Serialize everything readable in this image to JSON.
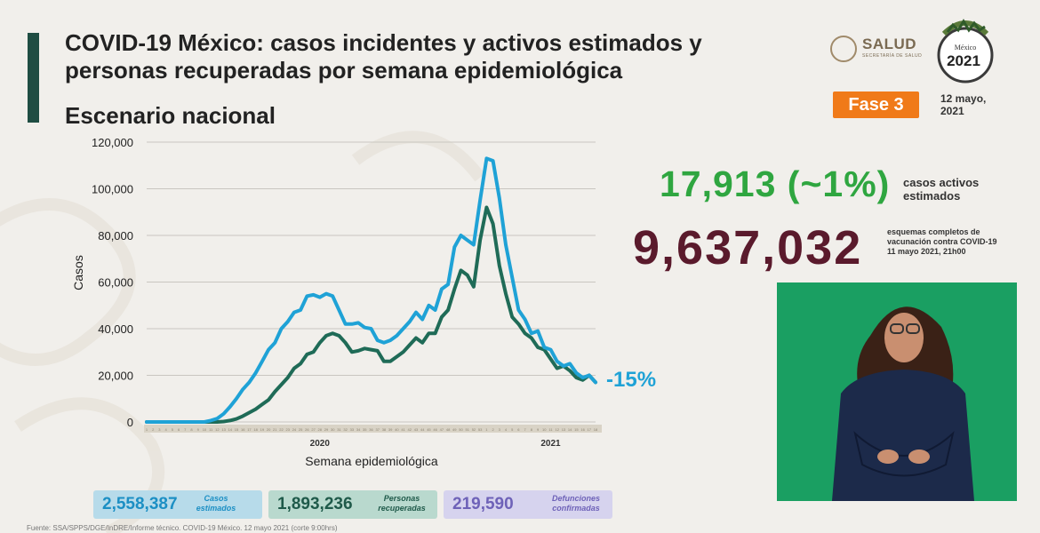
{
  "header": {
    "title": "COVID-19 México: casos incidentes y activos estimados y personas recuperadas por semana epidemiológica",
    "subtitle": "Escenario nacional",
    "logo_salud": "SALUD",
    "logo_salud_sub": "SECRETARÍA DE SALUD",
    "logo_mexico": "México",
    "logo_year": "2021",
    "phase": "Fase 3",
    "date": "12 mayo, 2021"
  },
  "kpis": {
    "active_value": "17,913 (~1%)",
    "active_label": "casos activos estimados",
    "vaccination_value": "9,637,032",
    "vaccination_label": "esquemas completos de vacunación contra COVID-19",
    "vaccination_date": "11 mayo 2021, 21h00"
  },
  "summary": {
    "estimated_value": "2,558,387",
    "estimated_label": "Casos estimados",
    "recovered_value": "1,893,236",
    "recovered_label": "Personas recuperadas",
    "deaths_value": "219,590",
    "deaths_label": "Defunciones confirmadas"
  },
  "footer": "Fuente: SSA/SPPS/DGE/InDRE/Informe técnico. COVID-19 México. 12 mayo 2021 (corte 9:00hrs)",
  "colors": {
    "estimated": "#1fa2d6",
    "recovered": "#1f6b57",
    "deaths": "#8a7fc9",
    "active_kpi": "#2fa640",
    "vaccination_kpi": "#5a1a2c",
    "phase": "#f07a19",
    "accent": "#1f4d43"
  },
  "chart_data": {
    "type": "line",
    "xlabel": "Semana epidemiológica",
    "ylabel": "Casos",
    "ylim": [
      0,
      120000
    ],
    "yticks": [
      0,
      20000,
      40000,
      60000,
      80000,
      100000,
      120000
    ],
    "ytick_labels": [
      "0",
      "20,000",
      "40,000",
      "60,000",
      "80,000",
      "100,000",
      "120,000"
    ],
    "year_labels": [
      {
        "label": "2020",
        "week_index": 27
      },
      {
        "label": "2021",
        "week_index": 63
      }
    ],
    "x": [
      1,
      2,
      3,
      4,
      5,
      6,
      7,
      8,
      9,
      10,
      11,
      12,
      13,
      14,
      15,
      16,
      17,
      18,
      19,
      20,
      21,
      22,
      23,
      24,
      25,
      26,
      27,
      28,
      29,
      30,
      31,
      32,
      33,
      34,
      35,
      36,
      37,
      38,
      39,
      40,
      41,
      42,
      43,
      44,
      45,
      46,
      47,
      48,
      49,
      50,
      51,
      52,
      53,
      1,
      2,
      3,
      4,
      5,
      6,
      7,
      8,
      9,
      10,
      11,
      12,
      13,
      14,
      15,
      16,
      17,
      18
    ],
    "annotation": "-15%",
    "grid": true,
    "series": [
      {
        "name": "Casos estimados",
        "values": [
          0,
          0,
          0,
          0,
          0,
          0,
          0,
          0,
          0,
          0,
          600,
          1500,
          3500,
          6500,
          10000,
          14000,
          17000,
          21000,
          26000,
          31000,
          34000,
          40000,
          43000,
          47000,
          48000,
          54000,
          54500,
          53500,
          55000,
          54000,
          48000,
          42000,
          42000,
          42500,
          40500,
          40000,
          35000,
          34000,
          35000,
          37000,
          40000,
          43000,
          47000,
          44000,
          50000,
          48000,
          57000,
          59000,
          75000,
          80000,
          78000,
          76000,
          95000,
          113000,
          112000,
          96000,
          76000,
          62000,
          48000,
          44000,
          38000,
          39000,
          32000,
          31000,
          26000,
          24000,
          25000,
          21000,
          19000,
          20000,
          17000
        ]
      },
      {
        "name": "Personas recuperadas",
        "values": [
          0,
          0,
          0,
          0,
          0,
          0,
          0,
          0,
          0,
          0,
          0,
          0,
          200,
          600,
          1300,
          2500,
          4000,
          5500,
          7500,
          9500,
          13000,
          16000,
          19000,
          23000,
          25000,
          29000,
          30000,
          34000,
          37000,
          38000,
          37000,
          34000,
          30000,
          30500,
          31500,
          31000,
          30500,
          26000,
          26000,
          28000,
          30000,
          33000,
          36000,
          34000,
          38000,
          38000,
          45000,
          48000,
          57000,
          65000,
          63000,
          58000,
          78000,
          92000,
          85000,
          67000,
          55000,
          45000,
          42000,
          38000,
          36000,
          32000,
          31000,
          27000,
          23000,
          24000,
          22000,
          19000,
          18000,
          20000,
          17000
        ]
      }
    ]
  }
}
